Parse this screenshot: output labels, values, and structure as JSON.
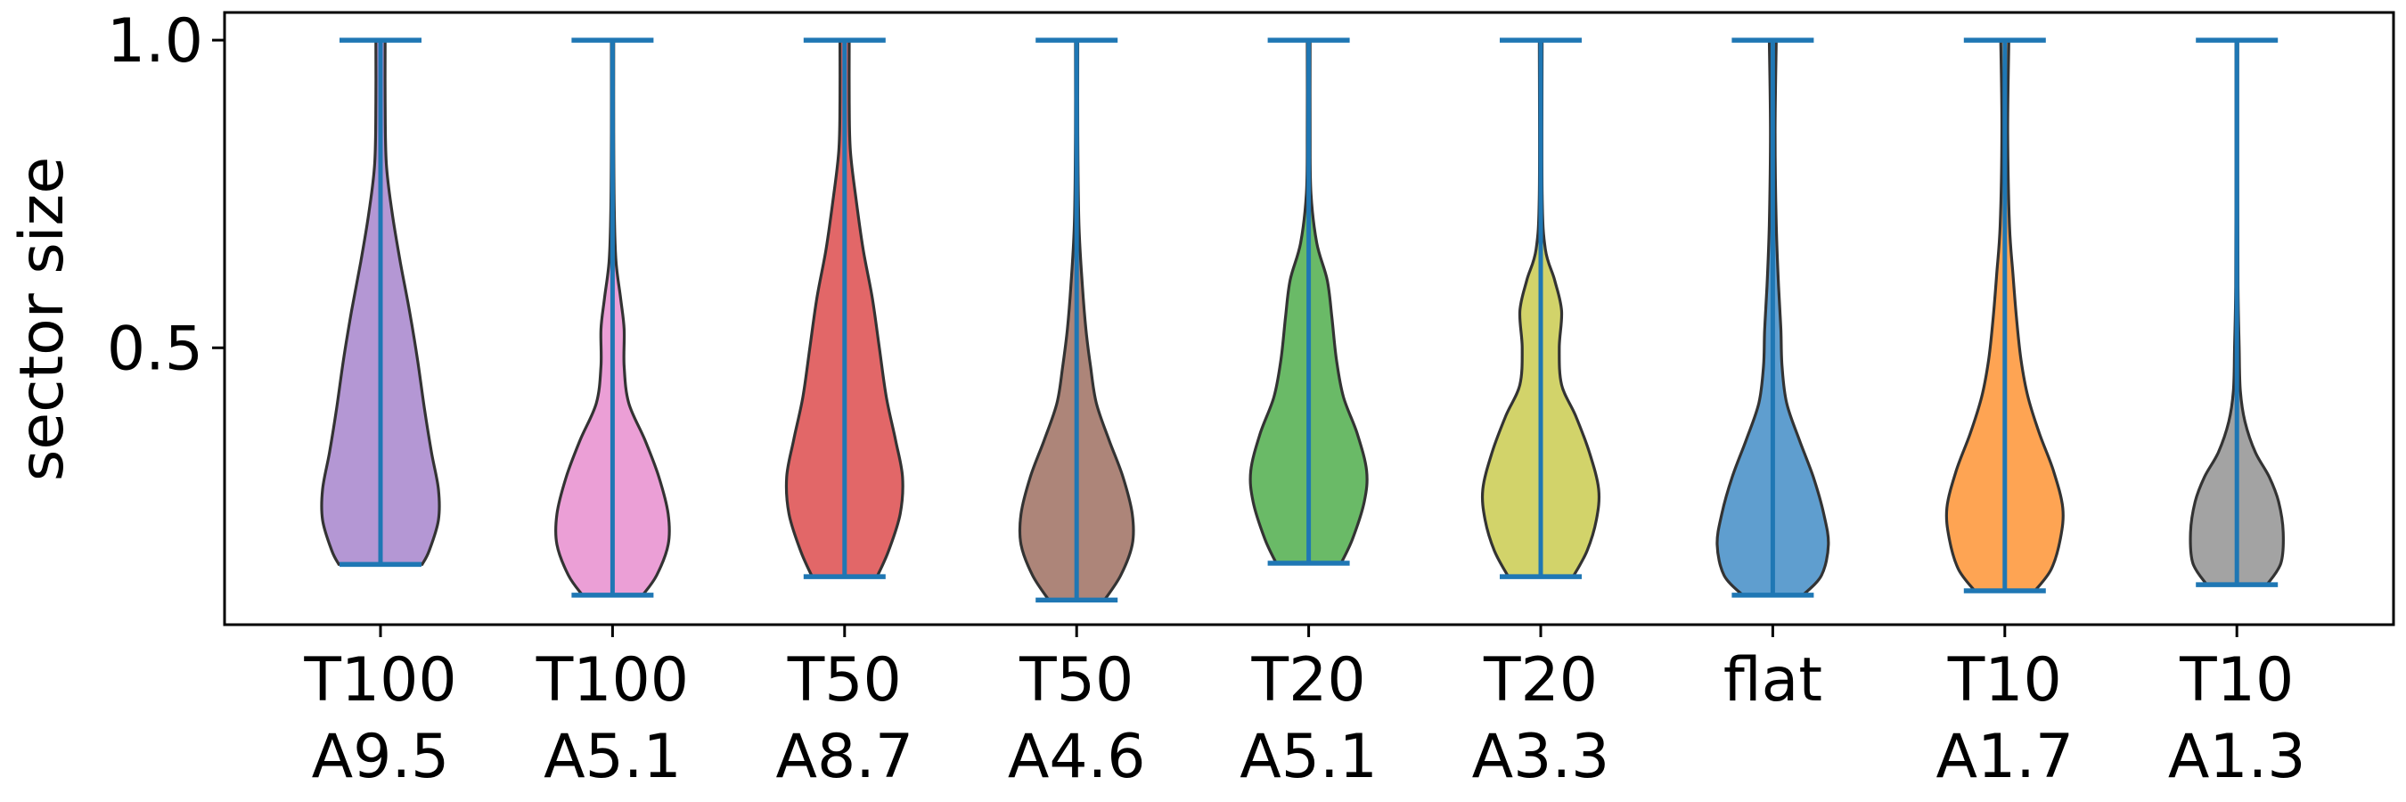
{
  "chart_data": {
    "type": "violin",
    "title": "",
    "xlabel": "",
    "ylabel": "sector size",
    "ylim": [
      0.05,
      1.045
    ],
    "yticks": [
      0.5,
      1.0
    ],
    "ytick_labels": [
      "0.5",
      "1.0"
    ],
    "grid": false,
    "categories": [
      {
        "line1": "T100",
        "line2": "A9.5"
      },
      {
        "line1": "T100",
        "line2": "A5.1"
      },
      {
        "line1": "T50",
        "line2": "A8.7"
      },
      {
        "line1": "T50",
        "line2": "A4.6"
      },
      {
        "line1": "T20",
        "line2": "A5.1"
      },
      {
        "line1": "T20",
        "line2": "A3.3"
      },
      {
        "line1": "flat",
        "line2": ""
      },
      {
        "line1": "T10",
        "line2": "A1.7"
      },
      {
        "line1": "T10",
        "line2": "A1.3"
      }
    ],
    "series": [
      {
        "color": "#b497d4",
        "min": 0.148,
        "max": 1.0,
        "density": [
          [
            0.148,
            0.36
          ],
          [
            0.17,
            0.42
          ],
          [
            0.22,
            0.5
          ],
          [
            0.27,
            0.5
          ],
          [
            0.33,
            0.44
          ],
          [
            0.4,
            0.38
          ],
          [
            0.48,
            0.32
          ],
          [
            0.56,
            0.25
          ],
          [
            0.64,
            0.17
          ],
          [
            0.72,
            0.1
          ],
          [
            0.8,
            0.05
          ],
          [
            0.9,
            0.04
          ],
          [
            1.0,
            0.04
          ]
        ]
      },
      {
        "color": "#eb9fd6",
        "min": 0.098,
        "max": 1.0,
        "density": [
          [
            0.098,
            0.26
          ],
          [
            0.13,
            0.38
          ],
          [
            0.18,
            0.48
          ],
          [
            0.23,
            0.48
          ],
          [
            0.29,
            0.4
          ],
          [
            0.35,
            0.28
          ],
          [
            0.41,
            0.14
          ],
          [
            0.47,
            0.1
          ],
          [
            0.53,
            0.1
          ],
          [
            0.58,
            0.07
          ],
          [
            0.64,
            0.03
          ],
          [
            0.72,
            0.015
          ],
          [
            0.85,
            0.01
          ],
          [
            1.0,
            0.01
          ]
        ]
      },
      {
        "color": "#e26768",
        "min": 0.128,
        "max": 1.0,
        "density": [
          [
            0.128,
            0.28
          ],
          [
            0.17,
            0.38
          ],
          [
            0.23,
            0.48
          ],
          [
            0.29,
            0.5
          ],
          [
            0.35,
            0.44
          ],
          [
            0.42,
            0.36
          ],
          [
            0.5,
            0.3
          ],
          [
            0.58,
            0.24
          ],
          [
            0.66,
            0.16
          ],
          [
            0.74,
            0.1
          ],
          [
            0.82,
            0.05
          ],
          [
            0.9,
            0.04
          ],
          [
            1.0,
            0.04
          ]
        ]
      },
      {
        "color": "#ad8579",
        "min": 0.09,
        "max": 1.0,
        "density": [
          [
            0.09,
            0.24
          ],
          [
            0.13,
            0.38
          ],
          [
            0.18,
            0.48
          ],
          [
            0.23,
            0.48
          ],
          [
            0.29,
            0.4
          ],
          [
            0.35,
            0.28
          ],
          [
            0.41,
            0.17
          ],
          [
            0.47,
            0.12
          ],
          [
            0.53,
            0.08
          ],
          [
            0.6,
            0.05
          ],
          [
            0.7,
            0.02
          ],
          [
            0.85,
            0.01
          ],
          [
            1.0,
            0.01
          ]
        ]
      },
      {
        "color": "#6aba67",
        "min": 0.15,
        "max": 1.0,
        "density": [
          [
            0.15,
            0.28
          ],
          [
            0.19,
            0.38
          ],
          [
            0.25,
            0.48
          ],
          [
            0.3,
            0.5
          ],
          [
            0.36,
            0.42
          ],
          [
            0.42,
            0.3
          ],
          [
            0.48,
            0.24
          ],
          [
            0.55,
            0.2
          ],
          [
            0.61,
            0.16
          ],
          [
            0.67,
            0.07
          ],
          [
            0.75,
            0.02
          ],
          [
            0.85,
            0.012
          ],
          [
            1.0,
            0.012
          ]
        ]
      },
      {
        "color": "#d2d36a",
        "min": 0.128,
        "max": 1.0,
        "density": [
          [
            0.128,
            0.28
          ],
          [
            0.17,
            0.4
          ],
          [
            0.22,
            0.48
          ],
          [
            0.27,
            0.5
          ],
          [
            0.33,
            0.42
          ],
          [
            0.39,
            0.3
          ],
          [
            0.44,
            0.18
          ],
          [
            0.5,
            0.16
          ],
          [
            0.56,
            0.18
          ],
          [
            0.61,
            0.12
          ],
          [
            0.66,
            0.04
          ],
          [
            0.75,
            0.012
          ],
          [
            1.0,
            0.012
          ]
        ]
      },
      {
        "color": "#5f9ecf",
        "min": 0.098,
        "max": 1.0,
        "density": [
          [
            0.098,
            0.26
          ],
          [
            0.13,
            0.42
          ],
          [
            0.18,
            0.48
          ],
          [
            0.23,
            0.44
          ],
          [
            0.29,
            0.35
          ],
          [
            0.35,
            0.23
          ],
          [
            0.41,
            0.12
          ],
          [
            0.47,
            0.08
          ],
          [
            0.53,
            0.07
          ],
          [
            0.6,
            0.05
          ],
          [
            0.7,
            0.03
          ],
          [
            0.85,
            0.02
          ],
          [
            1.0,
            0.03
          ]
        ]
      },
      {
        "color": "#fea453",
        "min": 0.105,
        "max": 1.0,
        "density": [
          [
            0.105,
            0.26
          ],
          [
            0.14,
            0.4
          ],
          [
            0.19,
            0.48
          ],
          [
            0.24,
            0.5
          ],
          [
            0.3,
            0.42
          ],
          [
            0.36,
            0.3
          ],
          [
            0.42,
            0.2
          ],
          [
            0.48,
            0.14
          ],
          [
            0.55,
            0.1
          ],
          [
            0.62,
            0.07
          ],
          [
            0.7,
            0.04
          ],
          [
            0.85,
            0.025
          ],
          [
            1.0,
            0.035
          ]
        ]
      },
      {
        "color": "#a3a3a3",
        "min": 0.115,
        "max": 1.0,
        "density": [
          [
            0.115,
            0.26
          ],
          [
            0.15,
            0.38
          ],
          [
            0.2,
            0.4
          ],
          [
            0.25,
            0.36
          ],
          [
            0.29,
            0.28
          ],
          [
            0.33,
            0.16
          ],
          [
            0.38,
            0.07
          ],
          [
            0.43,
            0.03
          ],
          [
            0.5,
            0.02
          ],
          [
            0.6,
            0.01
          ],
          [
            0.8,
            0.008
          ],
          [
            1.0,
            0.008
          ]
        ]
      }
    ]
  }
}
